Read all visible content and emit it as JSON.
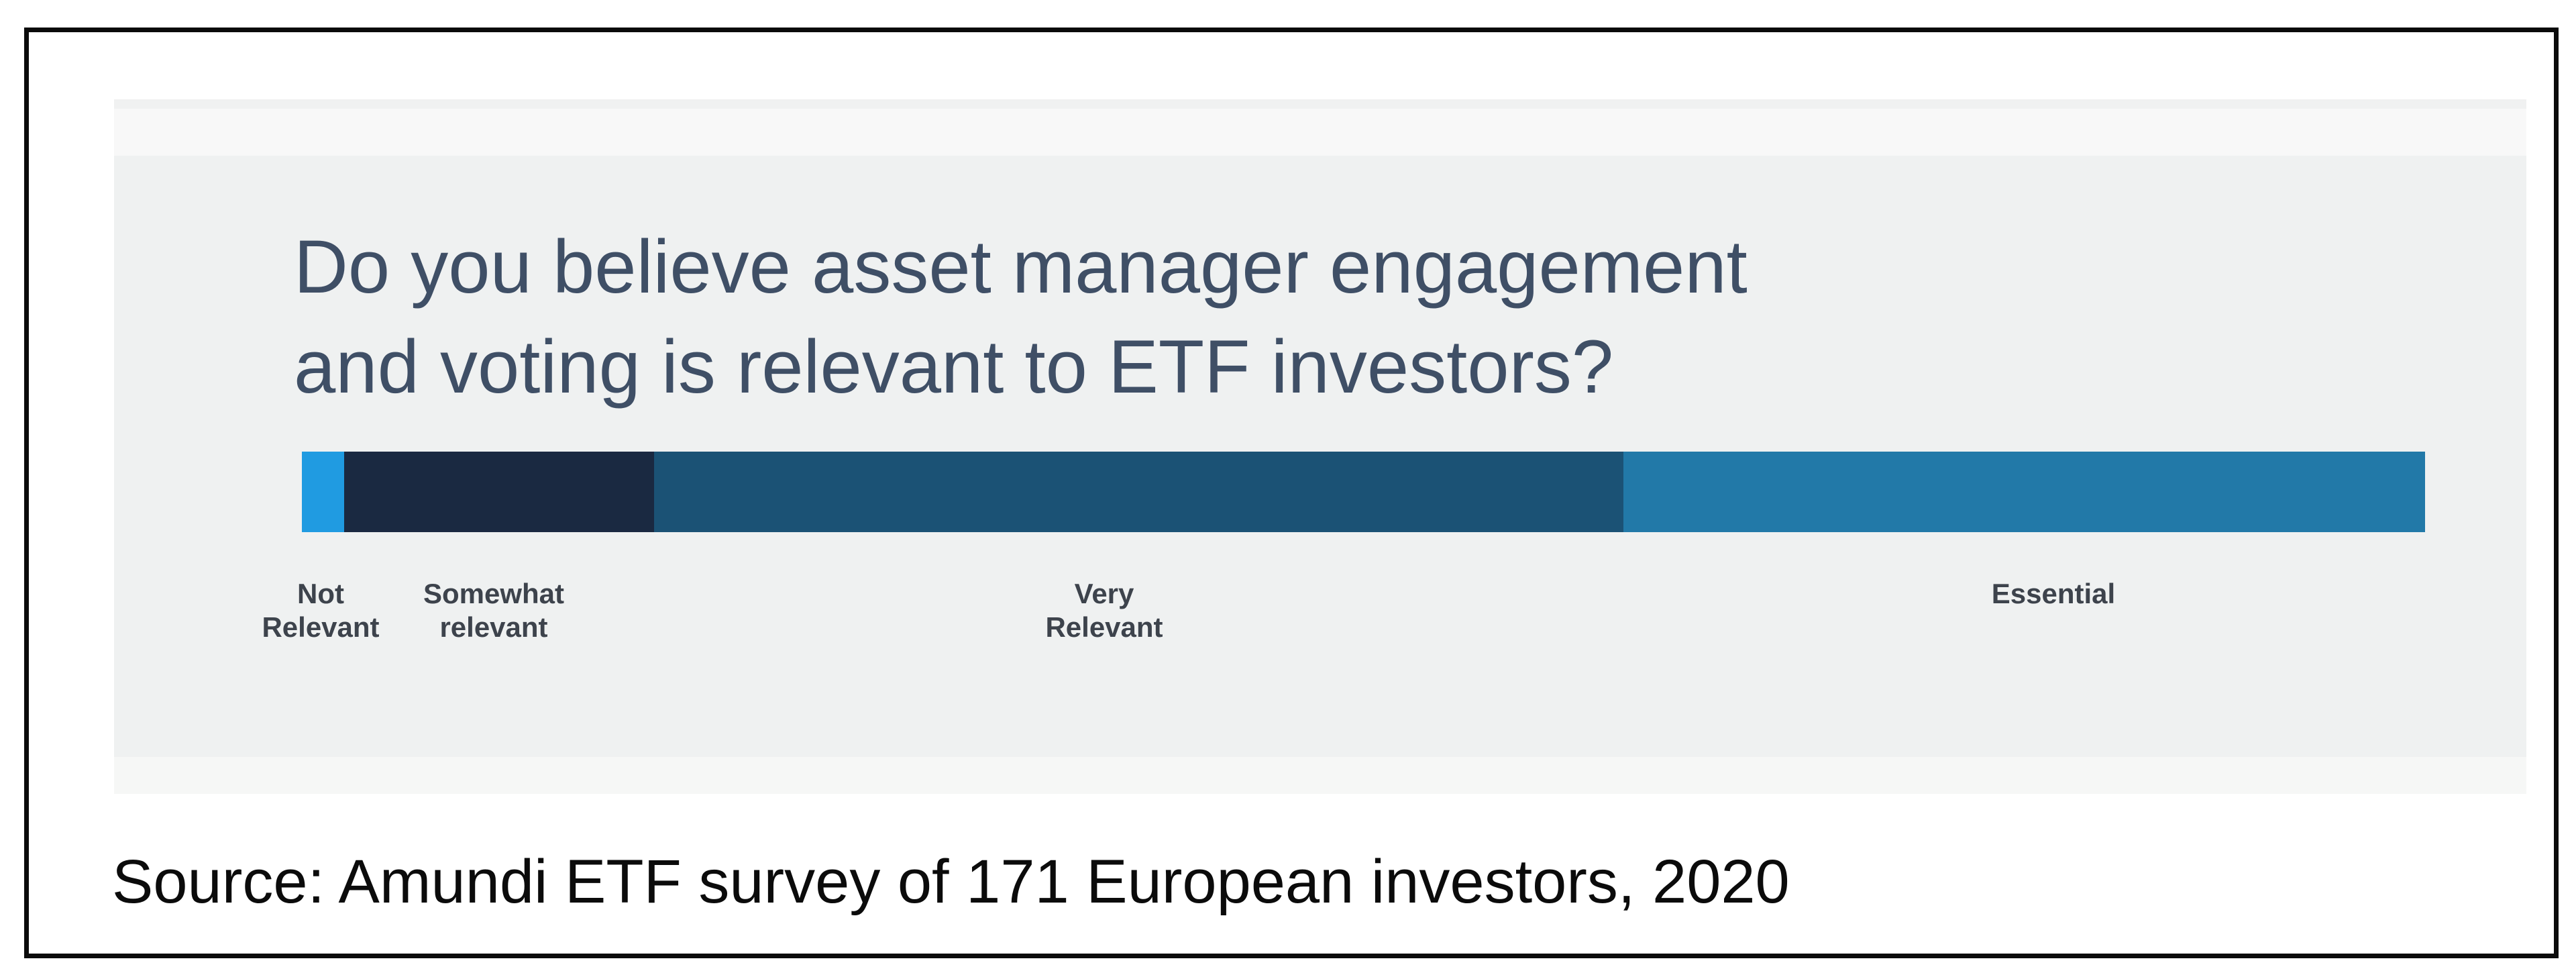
{
  "figure": {
    "title_line1": "Do you believe asset manager engagement",
    "title_line2": "and voting is relevant to ETF investors?",
    "source": "Source: Amundi ETF survey of 171 European investors, 2020"
  },
  "colors": {
    "title_text": "#3f4f66",
    "label_text": "#3d434c",
    "source_text": "#0b0b0b",
    "frame_border": "#0b0b0b",
    "panel_bg": "#eff1f1",
    "panel_strip_light": "#f8f8f8",
    "seg_not_relevant": "#209be1",
    "seg_somewhat_relevant": "#1a2941",
    "seg_very_relevant": "#1b5275",
    "seg_essential": "#2279a8"
  },
  "chart_data": {
    "type": "bar",
    "subtype": "single-stacked-horizontal",
    "title": "Do you believe asset manager engagement and voting is relevant to ETF investors?",
    "categories": [
      "Not Relevant",
      "Somewhat relevant",
      "Very Relevant",
      "Essential"
    ],
    "values_pct_estimated": [
      2,
      15,
      45,
      38
    ],
    "segment_widths_pct": [
      1.99,
      14.6,
      45.66,
      37.75
    ],
    "segment_colors": [
      "#209be1",
      "#1a2941",
      "#1b5275",
      "#2279a8"
    ],
    "xlabel": "",
    "ylabel": "",
    "axis": "none (segments labeled below bar)",
    "legend": "none",
    "labels_below_bar": [
      {
        "line1": "Not",
        "line2": "Relevant"
      },
      {
        "line1": "Somewhat",
        "line2": "relevant"
      },
      {
        "line1": "Very",
        "line2": "Relevant"
      },
      {
        "line1": "Essential",
        "line2": ""
      }
    ],
    "source": "Source: Amundi ETF survey of 171 European investors, 2020"
  }
}
